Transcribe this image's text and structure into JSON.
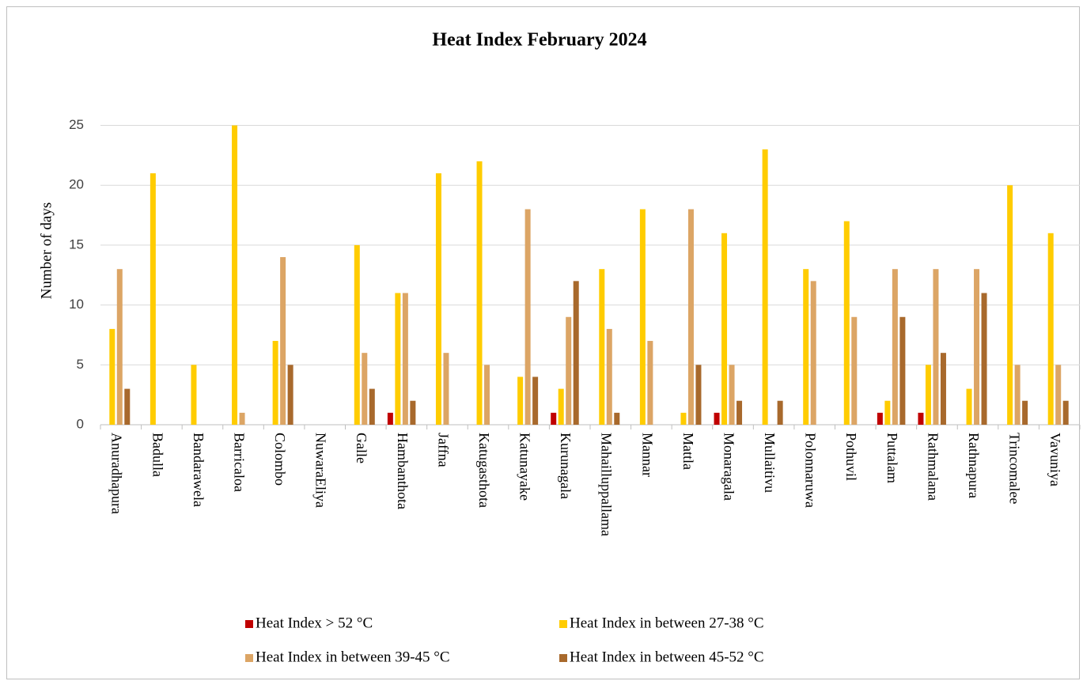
{
  "chart_data": {
    "type": "bar",
    "title": "Heat Index  February 2024",
    "ylabel": "Number of days",
    "categories": [
      "Anuradhapura",
      "Badulla",
      "Bandarawela",
      "Barricaloa",
      "Colombo",
      "NuwaraEliya",
      "Galle",
      "Hambanthota",
      "Jaffna",
      "Katugasthota",
      "Katunayake",
      "Kurunagala",
      "Mahailluppallama",
      "Mannar",
      "Mattla",
      "Monaragala",
      "Mullaitivu",
      "Polonnaruwa",
      "Pothuvil",
      "Puttalam",
      "Rathmalana",
      "Rathnapura",
      "Trincomalee",
      "Vavuniya"
    ],
    "series": [
      {
        "name": "Heat Index > 52 °C",
        "color": "#c00000",
        "values": [
          0,
          0,
          0,
          0,
          0,
          0,
          0,
          1,
          0,
          0,
          0,
          1,
          0,
          0,
          0,
          1,
          0,
          0,
          0,
          1,
          1,
          0,
          0,
          0
        ]
      },
      {
        "name": "Heat Index in between 27-38 °C",
        "color": "#ffcc00",
        "values": [
          8,
          21,
          5,
          25,
          7,
          0,
          15,
          11,
          21,
          22,
          4,
          3,
          13,
          18,
          1,
          16,
          23,
          13,
          17,
          2,
          5,
          3,
          20,
          16
        ]
      },
      {
        "name": "Heat Index in between 39-45 °C",
        "color": "#dca565",
        "values": [
          13,
          0,
          0,
          1,
          14,
          0,
          6,
          11,
          6,
          5,
          18,
          9,
          8,
          7,
          18,
          5,
          0,
          12,
          9,
          13,
          13,
          13,
          5,
          5
        ]
      },
      {
        "name": "Heat Index in between 45-52 °C",
        "color": "#a8692c",
        "values": [
          3,
          0,
          0,
          0,
          5,
          0,
          3,
          2,
          0,
          0,
          4,
          12,
          1,
          0,
          5,
          2,
          2,
          0,
          0,
          9,
          6,
          11,
          2,
          2
        ]
      }
    ],
    "ylim": [
      0,
      29
    ],
    "yticks": [
      0,
      5,
      10,
      15,
      20,
      25
    ],
    "grid": true
  }
}
